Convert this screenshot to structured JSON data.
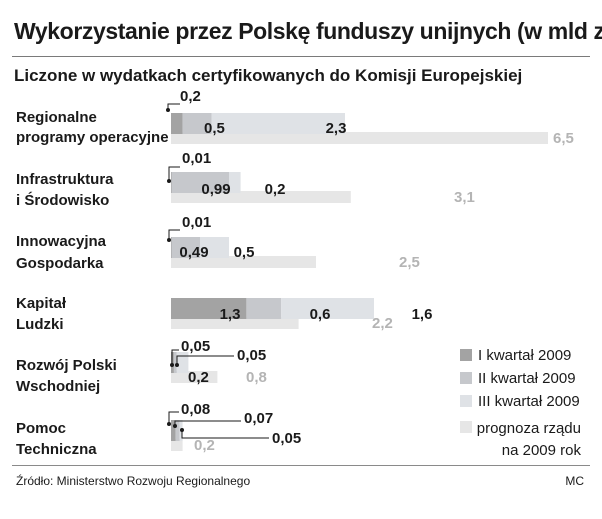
{
  "header": {
    "title": "Wykorzystanie przez Polskę funduszy unijnych (w mld zł)",
    "subtitle": "Liczone w wydatkach certyfikowanych do Komisji Europejskiej"
  },
  "footer": {
    "source": "Źródło: Ministerstwo Rozwoju Regionalnego",
    "author": "MC"
  },
  "chart_data": {
    "type": "bar",
    "orientation": "horizontal",
    "title": "Wykorzystanie przez Polskę funduszy unijnych (w mld zł)",
    "subtitle": "Liczone w wydatkach certyfikowanych do Komisji Europejskiej",
    "categories": [
      [
        "Regionalne",
        "programy operacyjne"
      ],
      [
        "Infrastruktura",
        "i Środowisko"
      ],
      [
        "Innowacyjna",
        "Gospodarka"
      ],
      [
        "Kapitał",
        "Ludzki"
      ],
      [
        "Rozwój Polski",
        "Wschodniej"
      ],
      [
        "Pomoc",
        "Techniczna"
      ]
    ],
    "series": [
      {
        "name": "I kwartał 2009",
        "values": [
          0.2,
          0.01,
          0.01,
          1.3,
          0.05,
          0.08
        ],
        "color": "#a3a3a3"
      },
      {
        "name": "II kwartał 2009",
        "values": [
          0.5,
          0.99,
          0.49,
          0.6,
          0.05,
          0.07
        ],
        "color": "#c6c8cc"
      },
      {
        "name": "III kwartał 2009",
        "values": [
          2.3,
          0.2,
          0.5,
          1.6,
          0.2,
          0.05
        ],
        "color": "#dfe2e6"
      }
    ],
    "forecast": {
      "name": "prognoza rządu na 2009 rok",
      "values": [
        6.5,
        3.1,
        2.5,
        2.2,
        0.8,
        0.2
      ],
      "color": "#e6e6e6"
    },
    "legend_position": "bottom-right",
    "grid": false
  }
}
